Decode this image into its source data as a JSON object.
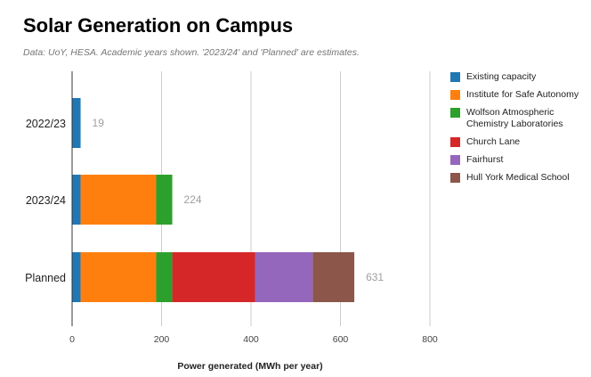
{
  "chart_data": {
    "type": "bar",
    "orientation": "horizontal",
    "stacked": true,
    "title": "Solar Generation on Campus",
    "subtitle": "Data: UoY, HESA. Academic years shown. '2023/24' and 'Planned' are estimates.",
    "xlabel": "Power generated (MWh per year)",
    "ylabel": "",
    "xlim": [
      0,
      800
    ],
    "xticks": [
      0,
      200,
      400,
      600,
      800
    ],
    "grid": true,
    "legend_position": "right",
    "categories": [
      "2022/23",
      "2023/24",
      "Planned"
    ],
    "totals": [
      19,
      224,
      631
    ],
    "series": [
      {
        "name": "Existing capacity",
        "color": "#1f77b4",
        "values": [
          19,
          19,
          19
        ]
      },
      {
        "name": "Institute for Safe Autonomy",
        "color": "#ff7f0e",
        "values": [
          0,
          169,
          169
        ]
      },
      {
        "name": "Wolfson Atmospheric Chemistry Laboratories",
        "color": "#2ca02c",
        "values": [
          0,
          36,
          36
        ]
      },
      {
        "name": "Church Lane",
        "color": "#d62728",
        "values": [
          0,
          0,
          185
        ]
      },
      {
        "name": "Fairhurst",
        "color": "#9467bd",
        "values": [
          0,
          0,
          129
        ]
      },
      {
        "name": "Hull York Medical School",
        "color": "#8c564b",
        "values": [
          0,
          0,
          93
        ]
      }
    ],
    "legend_labels": [
      [
        "Existing capacity"
      ],
      [
        "Institute for Safe Autonomy"
      ],
      [
        "Wolfson Atmospheric",
        "Chemistry Laboratories"
      ],
      [
        "Church Lane"
      ],
      [
        "Fairhurst"
      ],
      [
        "Hull York Medical School"
      ]
    ]
  }
}
